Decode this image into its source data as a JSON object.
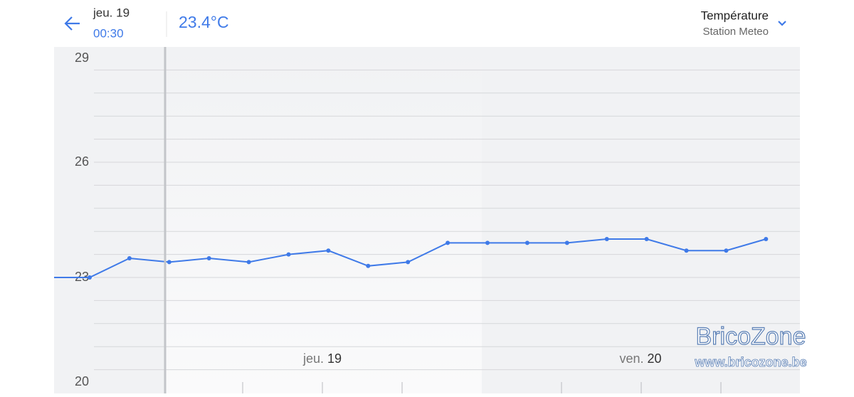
{
  "header": {
    "date": "jeu. 19",
    "time": "00:30",
    "reading": "23.4°C",
    "sensor": "Température",
    "station": "Station Meteo"
  },
  "watermark": {
    "brand": "BricoZone",
    "url": "www.bricozone.be"
  },
  "chart_data": {
    "type": "line",
    "categories": [
      null,
      null,
      null,
      null,
      null,
      null,
      null,
      null,
      null,
      null,
      null,
      null,
      null,
      null,
      null,
      null,
      null,
      null,
      null
    ],
    "series": [
      {
        "color": "#3f7ae8",
        "values": [
          23.0,
          23.0,
          23.5,
          23.4,
          23.5,
          23.4,
          23.6,
          23.7,
          23.3,
          23.4,
          23.9,
          23.9,
          23.9,
          23.9,
          24.0,
          24.0,
          23.7,
          23.7,
          24.0
        ]
      }
    ],
    "ylim": [
      20,
      29
    ],
    "yticks": [
      20,
      23,
      26,
      29
    ],
    "grid_lines": [
      20.6,
      21.2,
      21.8,
      22.4,
      23.0,
      23.6,
      24.2,
      24.8,
      25.4,
      26.0,
      26.6,
      27.2,
      27.8,
      28.4
    ],
    "day_labels": [
      {
        "day": "jeu.",
        "date": "19"
      },
      {
        "day": "ven.",
        "date": "20"
      }
    ]
  }
}
